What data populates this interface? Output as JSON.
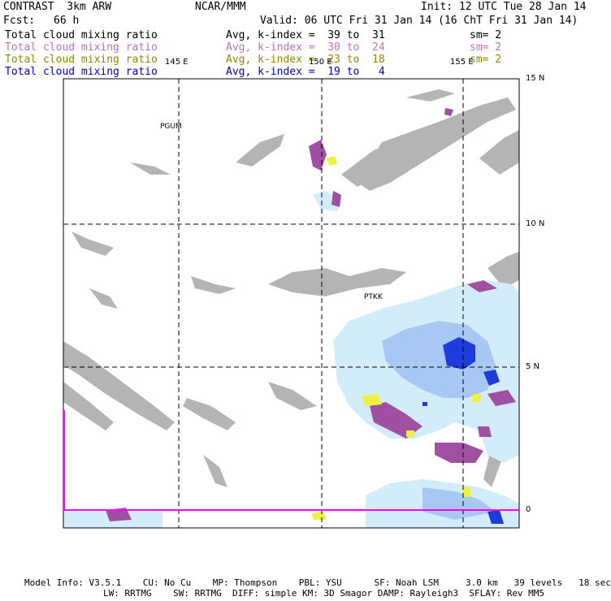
{
  "header": {
    "model": "CONTRAST  3km ARW",
    "center": "NCAR/MMM",
    "init": "Init: 12 UTC Tue 28 Jan 14",
    "fcst_label": "Fcst:",
    "fcst_value": "66 h",
    "valid": "Valid: 06 UTC Fri 31 Jan 14 (16 ChT Fri 31 Jan 14)"
  },
  "fields": [
    {
      "name": "Total cloud mixing ratio",
      "avg": "Avg, k-index =  39 to  31",
      "sm": "sm= 2",
      "color": "#000000"
    },
    {
      "name": "Total cloud mixing ratio",
      "avg": "Avg, k-index =  30 to  24",
      "sm": "sm= 2",
      "color": "#c070c0"
    },
    {
      "name": "Total cloud mixing ratio",
      "avg": "Avg, k-index =  23 to  18",
      "sm": "sm= 2",
      "color": "#8a8a00"
    },
    {
      "name": "Total cloud mixing ratio",
      "avg": "Avg, k-index =  19 to   4",
      "sm": "",
      "color": "#0000d0"
    }
  ],
  "axes": {
    "lon_labels": [
      "145 E",
      "150 E",
      "155 E"
    ],
    "lat_labels": [
      "15 N",
      "10 N",
      "5 N",
      "0"
    ]
  },
  "stations": [
    "PGUM",
    "PTKK"
  ],
  "footer": {
    "line1": "Model Info: V3.5.1    CU: No Cu    MP: Thompson    PBL: YSU      SF: Noah LSM     3.0 km   39 levels   18 sec",
    "line2": "LW: RRTMG    SW: RRTMG  DIFF: simple KM: 3D Smagor DAMP: Rayleigh3  SFLAY: Rev MM5"
  },
  "colors": {
    "land": "#b4b4b4",
    "cloud_light": "#d2ecfa",
    "cloud_mid": "#a8c8f4",
    "cloud_dark": "#1e3cdc",
    "magenta": "#a050a0",
    "yellow": "#f0f040",
    "boundary": "#ff00ff"
  }
}
